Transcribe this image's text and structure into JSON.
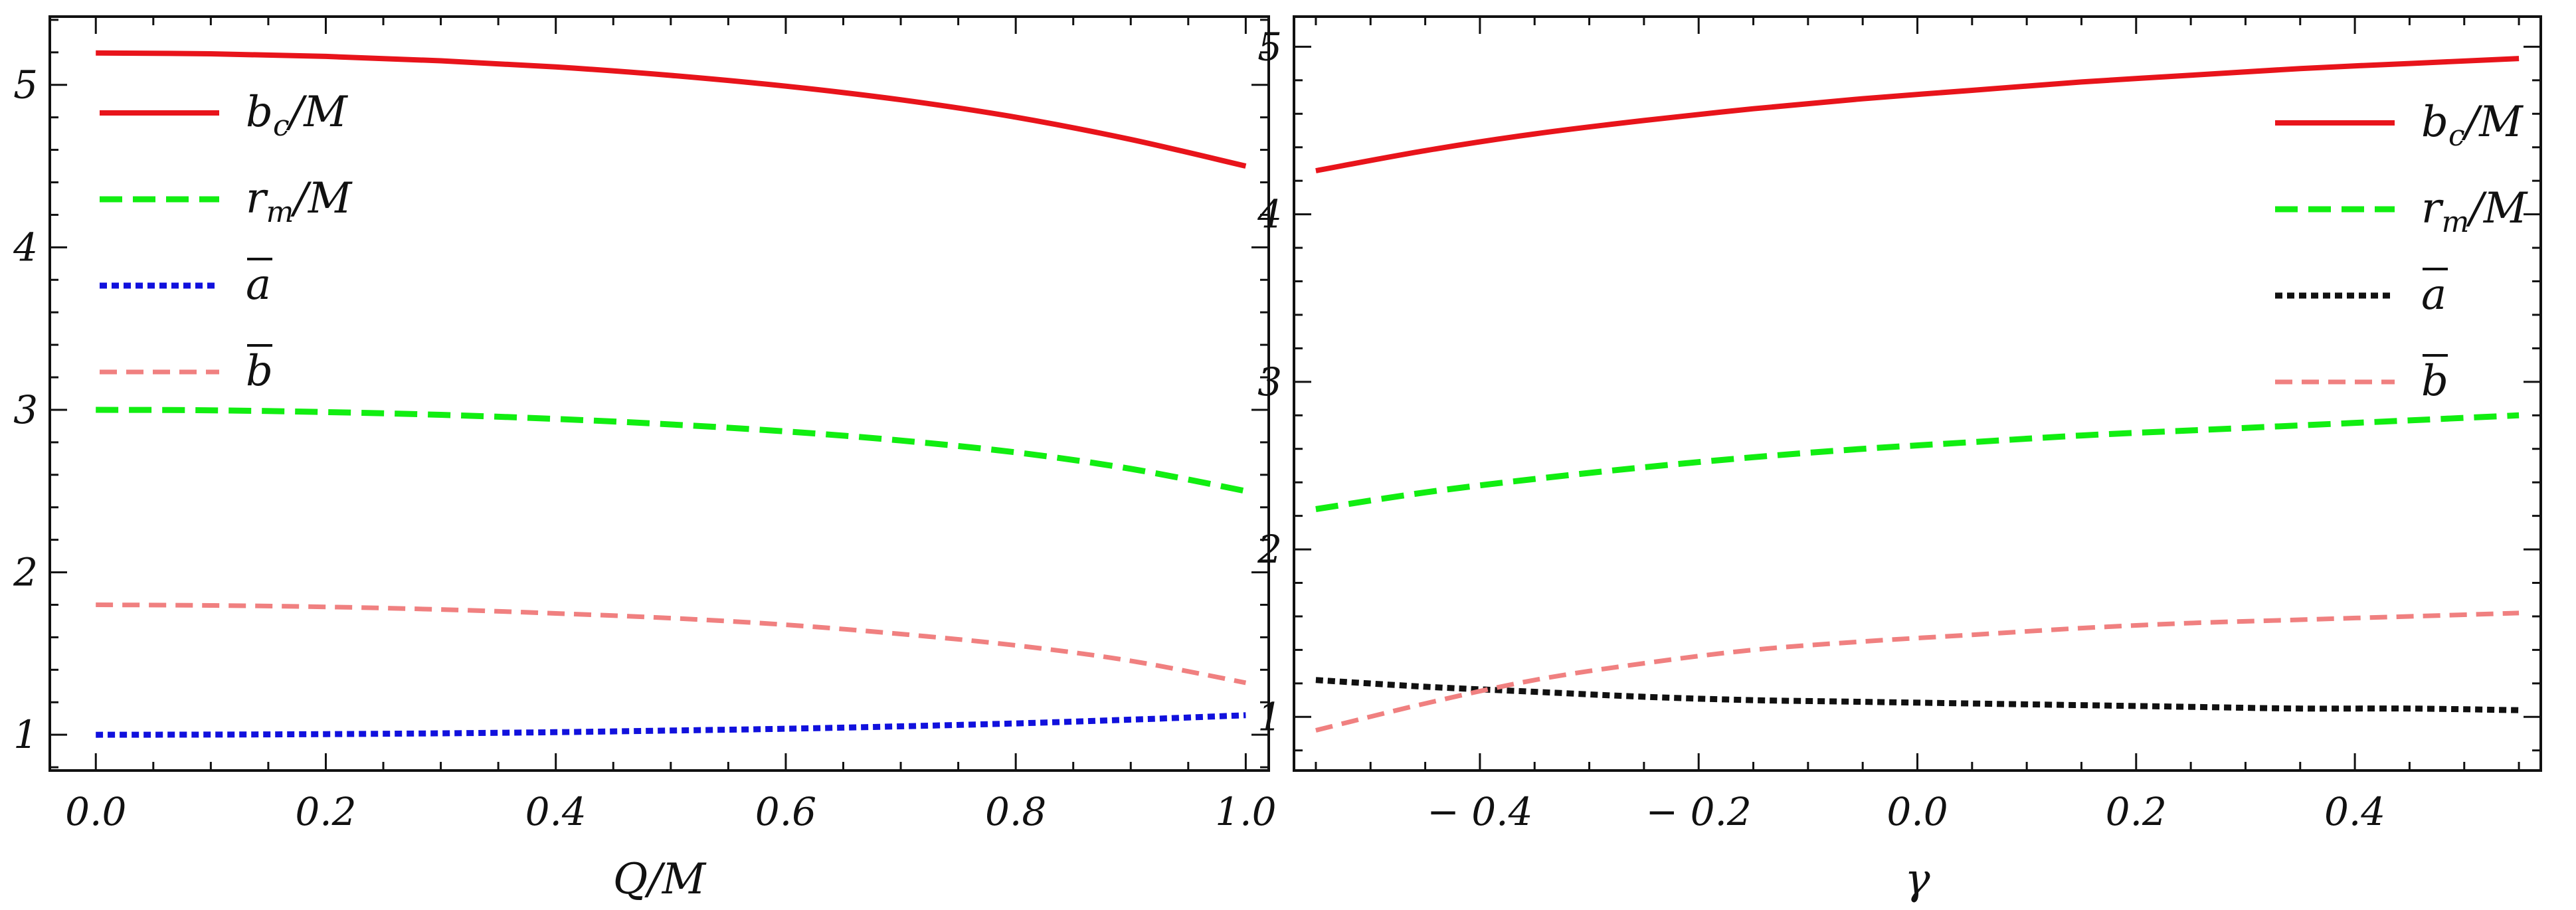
{
  "chart_data": [
    {
      "type": "line",
      "xlabel": "Q/M",
      "ylabel": "",
      "xlim": [
        -0.04,
        1.02
      ],
      "ylim": [
        0.78,
        5.42
      ],
      "xticks": [
        0.0,
        0.2,
        0.4,
        0.6,
        0.8,
        1.0
      ],
      "xtick_labels": [
        "0.0",
        "0.2",
        "0.4",
        "0.6",
        "0.8",
        "1.0"
      ],
      "yticks": [
        1,
        2,
        3,
        4,
        5
      ],
      "ytick_labels": [
        "1",
        "2",
        "3",
        "4",
        "5"
      ],
      "grid": false,
      "legend_position": "top-left",
      "x": [
        0.0,
        0.1,
        0.2,
        0.3,
        0.4,
        0.5,
        0.6,
        0.7,
        0.8,
        0.9,
        1.0
      ],
      "series": [
        {
          "name": "b_c/M",
          "legend_main": "b",
          "legend_sub": "c",
          "legend_tail": "/M",
          "color": "#e8141b",
          "dash": "solid",
          "width": 8,
          "values": [
            5.196,
            5.191,
            5.175,
            5.148,
            5.11,
            5.058,
            4.992,
            4.908,
            4.801,
            4.664,
            4.5
          ]
        },
        {
          "name": "r_m/M",
          "legend_main": "r",
          "legend_sub": "m",
          "legend_tail": "/M",
          "color": "#11ee11",
          "dash": "dashed",
          "width": 9,
          "values": [
            3.0,
            2.997,
            2.986,
            2.969,
            2.944,
            2.91,
            2.867,
            2.811,
            2.738,
            2.637,
            2.5
          ]
        },
        {
          "name": "ā",
          "legend_main": "a",
          "legend_sub": "",
          "legend_tail": "",
          "overline": true,
          "color": "#1111dd",
          "dash": "dotted",
          "width": 9,
          "values": [
            1.0,
            1.001,
            1.004,
            1.009,
            1.016,
            1.026,
            1.037,
            1.052,
            1.07,
            1.093,
            1.12
          ]
        },
        {
          "name": "b̄",
          "legend_main": "b",
          "legend_sub": "",
          "legend_tail": "",
          "overline": true,
          "color": "#f08080",
          "dash": "dashed-thin",
          "width": 7,
          "values": [
            1.8,
            1.796,
            1.787,
            1.771,
            1.747,
            1.718,
            1.677,
            1.62,
            1.55,
            1.455,
            1.32
          ]
        }
      ]
    },
    {
      "type": "line",
      "xlabel": "γ",
      "ylabel": "",
      "xlim": [
        -0.57,
        0.57
      ],
      "ylim": [
        0.68,
        5.18
      ],
      "xticks": [
        -0.4,
        -0.2,
        0.0,
        0.2,
        0.4
      ],
      "xtick_labels": [
        "− 0.4",
        "− 0.2",
        "0.0",
        "0.2",
        "0.4"
      ],
      "yticks": [
        1,
        2,
        3,
        4,
        5
      ],
      "ytick_labels": [
        "1",
        "2",
        "3",
        "4",
        "5"
      ],
      "grid": false,
      "legend_position": "top-right",
      "x": [
        -0.55,
        -0.45,
        -0.35,
        -0.25,
        -0.15,
        -0.05,
        0.05,
        0.15,
        0.25,
        0.35,
        0.45,
        0.55
      ],
      "series": [
        {
          "name": "b_c/M",
          "legend_main": "b",
          "legend_sub": "c",
          "legend_tail": "/M",
          "color": "#e8141b",
          "dash": "solid",
          "width": 8,
          "values": [
            4.26,
            4.38,
            4.48,
            4.56,
            4.63,
            4.69,
            4.74,
            4.79,
            4.83,
            4.87,
            4.9,
            4.93
          ]
        },
        {
          "name": "r_m/M",
          "legend_main": "r",
          "legend_sub": "m",
          "legend_tail": "/M",
          "color": "#11ee11",
          "dash": "dashed",
          "width": 9,
          "values": [
            2.24,
            2.34,
            2.42,
            2.49,
            2.55,
            2.6,
            2.64,
            2.68,
            2.71,
            2.74,
            2.77,
            2.8
          ]
        },
        {
          "name": "ā",
          "legend_main": "a",
          "legend_sub": "",
          "legend_tail": "",
          "overline": true,
          "color": "#111111",
          "dash": "dotted",
          "width": 9,
          "values": [
            1.22,
            1.18,
            1.15,
            1.12,
            1.1,
            1.09,
            1.08,
            1.07,
            1.06,
            1.05,
            1.05,
            1.04
          ]
        },
        {
          "name": "b̄",
          "legend_main": "b",
          "legend_sub": "",
          "legend_tail": "",
          "overline": true,
          "color": "#f08080",
          "dash": "dashed-thin",
          "width": 7,
          "values": [
            0.92,
            1.08,
            1.22,
            1.32,
            1.4,
            1.45,
            1.49,
            1.53,
            1.56,
            1.58,
            1.6,
            1.62
          ]
        }
      ]
    }
  ]
}
